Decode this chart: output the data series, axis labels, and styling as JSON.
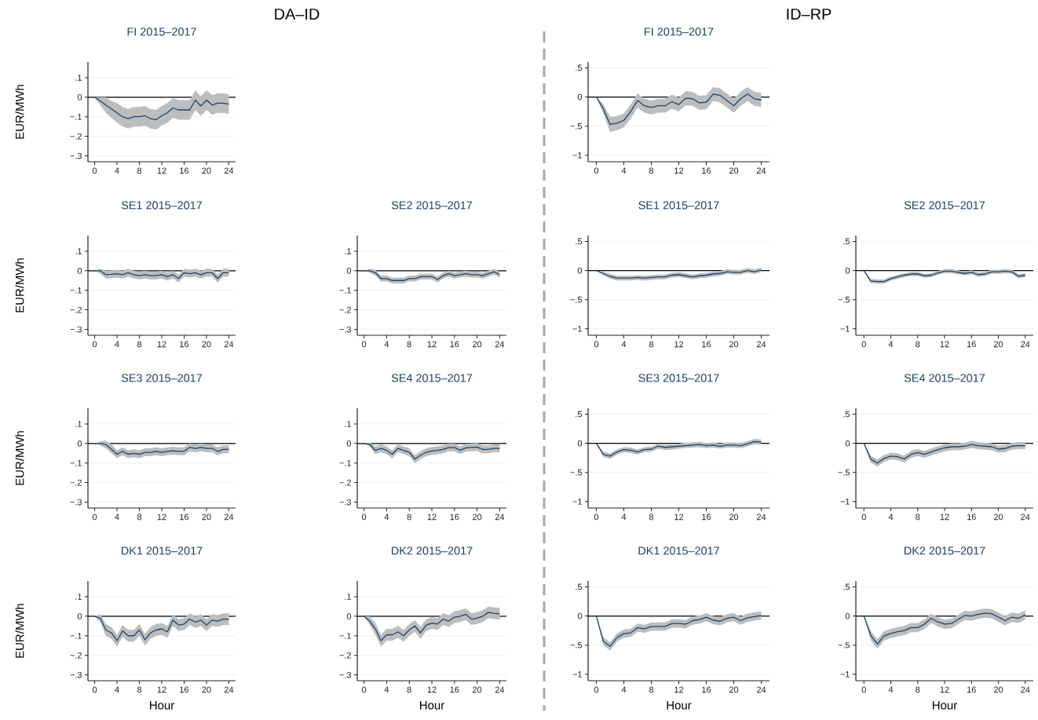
{
  "chart_data": [
    {
      "type": "line",
      "title": "FI 2015–2017",
      "ylabel": "EUR/MWh",
      "annotations": [
        "DA–ID"
      ],
      "x": [
        0,
        1,
        2,
        3,
        4,
        5,
        6,
        7,
        8,
        9,
        10,
        11,
        12,
        13,
        14,
        15,
        16,
        17,
        18,
        19,
        20,
        21,
        22,
        23,
        24
      ],
      "xlim": [
        -1.2,
        25.2
      ],
      "xticks": [
        0,
        4,
        8,
        12,
        16,
        20,
        24
      ],
      "ylim": [
        -0.33,
        0.18
      ],
      "yticks": [
        {
          "value": 0.1,
          "label": ".1"
        },
        0,
        {
          "value": -0.1,
          "label": "−.1"
        },
        {
          "value": -0.2,
          "label": "−.2"
        },
        {
          "value": -0.3,
          "label": "−.3"
        }
      ],
      "grid": "y",
      "ref_lines": [
        {
          "axis": "y",
          "value": 0,
          "color": "#000000"
        }
      ],
      "series": [
        {
          "color": "#1a476f",
          "values": [
            0,
            -0.02,
            -0.04,
            -0.06,
            -0.08,
            -0.1,
            -0.11,
            -0.1,
            -0.1,
            -0.095,
            -0.11,
            -0.115,
            -0.095,
            -0.08,
            -0.055,
            -0.065,
            -0.065,
            -0.065,
            -0.015,
            -0.045,
            -0.015,
            -0.04,
            -0.03,
            -0.03,
            -0.035
          ],
          "lower": [
            0,
            -0.04,
            -0.08,
            -0.105,
            -0.13,
            -0.15,
            -0.16,
            -0.15,
            -0.15,
            -0.145,
            -0.16,
            -0.165,
            -0.145,
            -0.13,
            -0.105,
            -0.115,
            -0.115,
            -0.115,
            -0.065,
            -0.095,
            -0.065,
            -0.09,
            -0.08,
            -0.08,
            -0.085
          ],
          "upper": [
            0,
            0,
            0,
            -0.02,
            -0.03,
            -0.05,
            -0.06,
            -0.05,
            -0.05,
            -0.045,
            -0.06,
            -0.065,
            -0.045,
            -0.03,
            -0.005,
            -0.015,
            -0.015,
            -0.015,
            0.035,
            0.005,
            0.035,
            0.01,
            0.02,
            0.02,
            0.015
          ]
        }
      ]
    },
    {
      "type": "line",
      "title": "FI 2015–2017",
      "annotations": [
        "ID–RP"
      ],
      "x": [
        0,
        1,
        2,
        3,
        4,
        5,
        6,
        7,
        8,
        9,
        10,
        11,
        12,
        13,
        14,
        15,
        16,
        17,
        18,
        19,
        20,
        21,
        22,
        23,
        24
      ],
      "xlim": [
        -1.2,
        25.2
      ],
      "xticks": [
        0,
        4,
        8,
        12,
        16,
        20,
        24
      ],
      "ylim": [
        -1.11,
        0.6
      ],
      "yticks": [
        {
          "value": 0.5,
          "label": ".5"
        },
        0,
        {
          "value": -0.5,
          "label": "−.5"
        },
        {
          "value": -1,
          "label": "−1"
        }
      ],
      "grid": "y",
      "ref_lines": [
        {
          "axis": "y",
          "value": 0,
          "color": "#000000"
        }
      ],
      "series": [
        {
          "color": "#1a476f",
          "values": [
            0,
            -0.2,
            -0.47,
            -0.45,
            -0.4,
            -0.25,
            -0.06,
            -0.15,
            -0.18,
            -0.15,
            -0.15,
            -0.08,
            -0.13,
            -0.02,
            -0.03,
            -0.1,
            -0.09,
            0.05,
            0.03,
            -0.06,
            -0.15,
            -0.03,
            0.05,
            -0.03,
            -0.05
          ],
          "lower": [
            0,
            -0.28,
            -0.6,
            -0.57,
            -0.52,
            -0.37,
            -0.18,
            -0.27,
            -0.3,
            -0.27,
            -0.27,
            -0.2,
            -0.25,
            -0.14,
            -0.15,
            -0.22,
            -0.21,
            -0.07,
            -0.09,
            -0.18,
            -0.27,
            -0.15,
            -0.07,
            -0.15,
            -0.17
          ],
          "upper": [
            0,
            -0.12,
            -0.34,
            -0.33,
            -0.28,
            -0.13,
            0.06,
            -0.03,
            -0.06,
            -0.03,
            -0.03,
            0.04,
            -0.01,
            0.1,
            0.09,
            0.02,
            0.03,
            0.17,
            0.15,
            0.06,
            -0.03,
            0.09,
            0.17,
            0.09,
            0.07
          ]
        }
      ]
    },
    {
      "type": "line",
      "title": "SE1 2015–2017",
      "ylabel": "EUR/MWh",
      "x": [
        0,
        1,
        2,
        3,
        4,
        5,
        6,
        7,
        8,
        9,
        10,
        11,
        12,
        13,
        14,
        15,
        16,
        17,
        18,
        19,
        20,
        21,
        22,
        23,
        24
      ],
      "xlim": [
        -1.2,
        25.2
      ],
      "xticks": [
        0,
        4,
        8,
        12,
        16,
        20,
        24
      ],
      "ylim": [
        -0.33,
        0.18
      ],
      "yticks": [
        {
          "value": 0.1,
          "label": ".1"
        },
        0,
        {
          "value": -0.1,
          "label": "−.1"
        },
        {
          "value": -0.2,
          "label": "−.2"
        },
        {
          "value": -0.3,
          "label": "−.3"
        }
      ],
      "grid": "y",
      "ref_lines": [
        {
          "axis": "y",
          "value": 0,
          "color": "#000000"
        }
      ],
      "series": [
        {
          "color": "#1a476f",
          "values": [
            0,
            0,
            -0.02,
            -0.018,
            -0.015,
            -0.02,
            -0.01,
            -0.02,
            -0.025,
            -0.02,
            -0.025,
            -0.025,
            -0.02,
            -0.03,
            -0.02,
            -0.04,
            -0.01,
            -0.015,
            -0.01,
            -0.02,
            -0.01,
            -0.01,
            -0.04,
            -0.01,
            -0.01
          ],
          "lower": [
            0,
            -0.015,
            -0.04,
            -0.038,
            -0.035,
            -0.04,
            -0.03,
            -0.04,
            -0.045,
            -0.04,
            -0.045,
            -0.045,
            -0.04,
            -0.05,
            -0.04,
            -0.06,
            -0.03,
            -0.035,
            -0.03,
            -0.04,
            -0.03,
            -0.03,
            -0.06,
            -0.03,
            -0.03
          ],
          "upper": [
            0,
            0.01,
            0,
            0.002,
            0.005,
            0,
            0.01,
            0,
            -0.005,
            0,
            -0.005,
            -0.005,
            0,
            -0.01,
            0,
            -0.02,
            0.01,
            0.005,
            0.01,
            0,
            0.01,
            0.01,
            -0.02,
            0.01,
            0.01
          ]
        }
      ]
    },
    {
      "type": "line",
      "title": "SE2 2015–2017",
      "x": [
        0,
        1,
        2,
        3,
        4,
        5,
        6,
        7,
        8,
        9,
        10,
        11,
        12,
        13,
        14,
        15,
        16,
        17,
        18,
        19,
        20,
        21,
        22,
        23,
        24
      ],
      "xlim": [
        -1.2,
        25.2
      ],
      "xticks": [
        0,
        4,
        8,
        12,
        16,
        20,
        24
      ],
      "ylim": [
        -0.33,
        0.18
      ],
      "yticks": [
        {
          "value": 0.1,
          "label": ".1"
        },
        0,
        {
          "value": -0.1,
          "label": "−.1"
        },
        {
          "value": -0.2,
          "label": "−.2"
        },
        {
          "value": -0.3,
          "label": "−.3"
        }
      ],
      "grid": "y",
      "ref_lines": [
        {
          "axis": "y",
          "value": 0,
          "color": "#000000"
        }
      ],
      "series": [
        {
          "color": "#1a476f",
          "values": [
            0,
            0,
            -0.01,
            -0.04,
            -0.04,
            -0.05,
            -0.05,
            -0.05,
            -0.04,
            -0.04,
            -0.03,
            -0.03,
            -0.03,
            -0.045,
            -0.025,
            -0.015,
            -0.025,
            -0.02,
            -0.015,
            -0.02,
            -0.02,
            -0.025,
            -0.015,
            -0.005,
            -0.02
          ],
          "lower": [
            0,
            -0.01,
            -0.025,
            -0.055,
            -0.055,
            -0.065,
            -0.065,
            -0.065,
            -0.055,
            -0.055,
            -0.045,
            -0.045,
            -0.045,
            -0.06,
            -0.04,
            -0.03,
            -0.04,
            -0.035,
            -0.03,
            -0.035,
            -0.035,
            -0.04,
            -0.03,
            -0.02,
            -0.035
          ],
          "upper": [
            0,
            0.01,
            0.005,
            -0.025,
            -0.025,
            -0.035,
            -0.035,
            -0.035,
            -0.025,
            -0.025,
            -0.015,
            -0.015,
            -0.015,
            -0.03,
            -0.01,
            0,
            -0.01,
            -0.005,
            0,
            -0.005,
            -0.005,
            -0.01,
            0,
            0.01,
            -0.005
          ]
        }
      ]
    },
    {
      "type": "line",
      "title": "SE1 2015–2017",
      "x": [
        0,
        1,
        2,
        3,
        4,
        5,
        6,
        7,
        8,
        9,
        10,
        11,
        12,
        13,
        14,
        15,
        16,
        17,
        18,
        19,
        20,
        21,
        22,
        23,
        24
      ],
      "xlim": [
        -1.2,
        25.2
      ],
      "xticks": [
        0,
        4,
        8,
        12,
        16,
        20,
        24
      ],
      "ylim": [
        -1.11,
        0.6
      ],
      "yticks": [
        {
          "value": 0.5,
          "label": ".5"
        },
        0,
        {
          "value": -0.5,
          "label": "−.5"
        },
        {
          "value": -1,
          "label": "−1"
        }
      ],
      "grid": "y",
      "ref_lines": [
        {
          "axis": "y",
          "value": 0,
          "color": "#000000"
        }
      ],
      "series": [
        {
          "color": "#1a476f",
          "values": [
            0,
            -0.05,
            -0.1,
            -0.13,
            -0.13,
            -0.13,
            -0.12,
            -0.13,
            -0.12,
            -0.11,
            -0.11,
            -0.08,
            -0.07,
            -0.09,
            -0.11,
            -0.09,
            -0.08,
            -0.06,
            -0.05,
            -0.02,
            -0.03,
            -0.03,
            0,
            -0.02,
            0.01
          ],
          "lower": [
            0,
            -0.08,
            -0.14,
            -0.17,
            -0.17,
            -0.17,
            -0.16,
            -0.17,
            -0.16,
            -0.15,
            -0.15,
            -0.12,
            -0.11,
            -0.13,
            -0.15,
            -0.13,
            -0.12,
            -0.1,
            -0.09,
            -0.06,
            -0.07,
            -0.07,
            -0.04,
            -0.06,
            -0.03
          ],
          "upper": [
            0,
            -0.02,
            -0.06,
            -0.09,
            -0.09,
            -0.09,
            -0.08,
            -0.09,
            -0.08,
            -0.07,
            -0.07,
            -0.04,
            -0.03,
            -0.05,
            -0.07,
            -0.05,
            -0.04,
            -0.02,
            -0.01,
            0.02,
            0.01,
            0.01,
            0.04,
            0.02,
            0.05
          ]
        }
      ]
    },
    {
      "type": "line",
      "title": "SE2 2015–2017",
      "x": [
        0,
        1,
        2,
        3,
        4,
        5,
        6,
        7,
        8,
        9,
        10,
        11,
        12,
        13,
        14,
        15,
        16,
        17,
        18,
        19,
        20,
        21,
        22,
        23,
        24
      ],
      "xlim": [
        -1.2,
        25.2
      ],
      "xticks": [
        0,
        4,
        8,
        12,
        16,
        20,
        24
      ],
      "ylim": [
        -1.11,
        0.6
      ],
      "yticks": [
        {
          "value": 0.5,
          "label": ".5"
        },
        0,
        {
          "value": -0.5,
          "label": "−.5"
        },
        {
          "value": -1,
          "label": "−1"
        }
      ],
      "grid": "y",
      "ref_lines": [
        {
          "axis": "y",
          "value": 0,
          "color": "#000000"
        }
      ],
      "series": [
        {
          "color": "#1a476f",
          "values": [
            0,
            -0.18,
            -0.19,
            -0.19,
            -0.14,
            -0.11,
            -0.08,
            -0.06,
            -0.06,
            -0.09,
            -0.08,
            -0.04,
            -0.01,
            -0.01,
            -0.03,
            -0.05,
            -0.03,
            -0.07,
            -0.06,
            -0.02,
            -0.02,
            -0.01,
            -0.02,
            -0.1,
            -0.08
          ],
          "lower": [
            0,
            -0.215,
            -0.225,
            -0.225,
            -0.175,
            -0.145,
            -0.115,
            -0.095,
            -0.095,
            -0.125,
            -0.115,
            -0.075,
            -0.045,
            -0.045,
            -0.065,
            -0.085,
            -0.065,
            -0.105,
            -0.095,
            -0.055,
            -0.055,
            -0.045,
            -0.055,
            -0.135,
            -0.115
          ],
          "upper": [
            0,
            -0.145,
            -0.155,
            -0.155,
            -0.105,
            -0.075,
            -0.045,
            -0.025,
            -0.025,
            -0.055,
            -0.045,
            -0.005,
            0.025,
            0.025,
            0.005,
            -0.015,
            0.005,
            -0.035,
            -0.025,
            0.015,
            0.015,
            0.025,
            0.015,
            -0.065,
            -0.045
          ]
        }
      ]
    },
    {
      "type": "line",
      "title": "SE3 2015–2017",
      "ylabel": "EUR/MWh",
      "x": [
        0,
        1,
        2,
        3,
        4,
        5,
        6,
        7,
        8,
        9,
        10,
        11,
        12,
        13,
        14,
        15,
        16,
        17,
        18,
        19,
        20,
        21,
        22,
        23,
        24
      ],
      "xlim": [
        -1.2,
        25.2
      ],
      "xticks": [
        0,
        4,
        8,
        12,
        16,
        20,
        24
      ],
      "ylim": [
        -0.33,
        0.18
      ],
      "yticks": [
        {
          "value": 0.1,
          "label": ".1"
        },
        0,
        {
          "value": -0.1,
          "label": "−.1"
        },
        {
          "value": -0.2,
          "label": "−.2"
        },
        {
          "value": -0.3,
          "label": "−.3"
        }
      ],
      "grid": "y",
      "ref_lines": [
        {
          "axis": "y",
          "value": 0,
          "color": "#000000"
        }
      ],
      "series": [
        {
          "color": "#1a476f",
          "values": [
            0,
            0,
            -0.005,
            -0.03,
            -0.055,
            -0.04,
            -0.055,
            -0.05,
            -0.055,
            -0.045,
            -0.045,
            -0.04,
            -0.045,
            -0.04,
            -0.037,
            -0.04,
            -0.04,
            -0.02,
            -0.025,
            -0.02,
            -0.025,
            -0.025,
            -0.04,
            -0.03,
            -0.03
          ],
          "lower": [
            0,
            -0.01,
            -0.025,
            -0.05,
            -0.075,
            -0.06,
            -0.075,
            -0.07,
            -0.075,
            -0.065,
            -0.065,
            -0.06,
            -0.065,
            -0.06,
            -0.057,
            -0.06,
            -0.06,
            -0.04,
            -0.045,
            -0.04,
            -0.045,
            -0.045,
            -0.06,
            -0.05,
            -0.05
          ],
          "upper": [
            0,
            0.01,
            0.015,
            -0.005,
            -0.035,
            -0.02,
            -0.035,
            -0.03,
            -0.035,
            -0.025,
            -0.025,
            -0.02,
            -0.025,
            -0.02,
            -0.017,
            -0.02,
            -0.02,
            0,
            -0.005,
            0,
            -0.005,
            -0.005,
            -0.02,
            -0.01,
            -0.01
          ]
        }
      ]
    },
    {
      "type": "line",
      "title": "SE4 2015–2017",
      "x": [
        0,
        1,
        2,
        3,
        4,
        5,
        6,
        7,
        8,
        9,
        10,
        11,
        12,
        13,
        14,
        15,
        16,
        17,
        18,
        19,
        20,
        21,
        22,
        23,
        24
      ],
      "xlim": [
        -1.2,
        25.2
      ],
      "xticks": [
        0,
        4,
        8,
        12,
        16,
        20,
        24
      ],
      "ylim": [
        -0.33,
        0.18
      ],
      "yticks": [
        {
          "value": 0.1,
          "label": ".1"
        },
        0,
        {
          "value": -0.1,
          "label": "−.1"
        },
        {
          "value": -0.2,
          "label": "−.2"
        },
        {
          "value": -0.3,
          "label": "−.3"
        }
      ],
      "grid": "y",
      "ref_lines": [
        {
          "axis": "y",
          "value": 0,
          "color": "#000000"
        }
      ],
      "series": [
        {
          "color": "#1a476f",
          "values": [
            0,
            -0.005,
            -0.035,
            -0.025,
            -0.035,
            -0.055,
            -0.025,
            -0.035,
            -0.045,
            -0.08,
            -0.06,
            -0.045,
            -0.038,
            -0.035,
            -0.03,
            -0.02,
            -0.02,
            -0.035,
            -0.022,
            -0.02,
            -0.018,
            -0.03,
            -0.03,
            -0.025,
            -0.025
          ],
          "lower": [
            0,
            -0.015,
            -0.055,
            -0.045,
            -0.055,
            -0.075,
            -0.045,
            -0.055,
            -0.065,
            -0.1,
            -0.08,
            -0.065,
            -0.058,
            -0.055,
            -0.05,
            -0.04,
            -0.04,
            -0.055,
            -0.042,
            -0.04,
            -0.038,
            -0.05,
            -0.05,
            -0.045,
            -0.045
          ],
          "upper": [
            0,
            0.005,
            -0.015,
            -0.005,
            -0.015,
            -0.035,
            -0.005,
            -0.015,
            -0.025,
            -0.06,
            -0.04,
            -0.025,
            -0.018,
            -0.015,
            -0.01,
            0,
            0,
            -0.015,
            -0.002,
            0,
            0.002,
            -0.01,
            -0.01,
            -0.005,
            -0.005
          ]
        }
      ]
    },
    {
      "type": "line",
      "title": "SE3 2015–2017",
      "x": [
        0,
        1,
        2,
        3,
        4,
        5,
        6,
        7,
        8,
        9,
        10,
        11,
        12,
        13,
        14,
        15,
        16,
        17,
        18,
        19,
        20,
        21,
        22,
        23,
        24
      ],
      "xlim": [
        -1.2,
        25.2
      ],
      "xticks": [
        0,
        4,
        8,
        12,
        16,
        20,
        24
      ],
      "ylim": [
        -1.11,
        0.6
      ],
      "yticks": [
        {
          "value": 0.5,
          "label": ".5"
        },
        0,
        {
          "value": -0.5,
          "label": "−.5"
        },
        {
          "value": -1,
          "label": "−1"
        }
      ],
      "grid": "y",
      "ref_lines": [
        {
          "axis": "y",
          "value": 0,
          "color": "#000000"
        }
      ],
      "series": [
        {
          "color": "#1a476f",
          "values": [
            0,
            -0.19,
            -0.22,
            -0.15,
            -0.11,
            -0.12,
            -0.15,
            -0.11,
            -0.1,
            -0.05,
            -0.07,
            -0.06,
            -0.05,
            -0.04,
            -0.03,
            -0.02,
            -0.04,
            -0.03,
            -0.05,
            -0.03,
            -0.03,
            -0.04,
            -0.01,
            0.03,
            0.02
          ],
          "lower": [
            0,
            -0.235,
            -0.265,
            -0.195,
            -0.155,
            -0.165,
            -0.195,
            -0.155,
            -0.145,
            -0.095,
            -0.115,
            -0.11,
            -0.095,
            -0.08,
            -0.075,
            -0.065,
            -0.085,
            -0.075,
            -0.095,
            -0.075,
            -0.075,
            -0.085,
            -0.055,
            -0.015,
            -0.025
          ],
          "upper": [
            0,
            -0.145,
            -0.175,
            -0.105,
            -0.065,
            -0.075,
            -0.105,
            -0.065,
            -0.055,
            -0.005,
            -0.025,
            -0.015,
            -0.005,
            0.01,
            0.015,
            0.025,
            0.005,
            0.015,
            -0.005,
            0.015,
            0.015,
            0.005,
            0.035,
            0.075,
            0.065
          ]
        }
      ]
    },
    {
      "type": "line",
      "title": "SE4 2015–2017",
      "x": [
        0,
        1,
        2,
        3,
        4,
        5,
        6,
        7,
        8,
        9,
        10,
        11,
        12,
        13,
        14,
        15,
        16,
        17,
        18,
        19,
        20,
        21,
        22,
        23,
        24
      ],
      "xlim": [
        -1.2,
        25.2
      ],
      "xticks": [
        0,
        4,
        8,
        12,
        16,
        20,
        24
      ],
      "ylim": [
        -1.11,
        0.6
      ],
      "yticks": [
        {
          "value": 0.5,
          "label": ".5"
        },
        0,
        {
          "value": -0.5,
          "label": "−.5"
        },
        {
          "value": -1,
          "label": "−1"
        }
      ],
      "grid": "y",
      "ref_lines": [
        {
          "axis": "y",
          "value": 0,
          "color": "#000000"
        }
      ],
      "series": [
        {
          "color": "#1a476f",
          "values": [
            0,
            -0.27,
            -0.34,
            -0.26,
            -0.22,
            -0.23,
            -0.27,
            -0.19,
            -0.16,
            -0.19,
            -0.15,
            -0.11,
            -0.08,
            -0.06,
            -0.06,
            -0.05,
            -0.02,
            -0.04,
            -0.05,
            -0.06,
            -0.1,
            -0.09,
            -0.05,
            -0.04,
            -0.04
          ],
          "lower": [
            0,
            -0.33,
            -0.4,
            -0.32,
            -0.28,
            -0.29,
            -0.33,
            -0.25,
            -0.22,
            -0.25,
            -0.21,
            -0.17,
            -0.14,
            -0.12,
            -0.12,
            -0.11,
            -0.08,
            -0.1,
            -0.11,
            -0.12,
            -0.16,
            -0.15,
            -0.11,
            -0.1,
            -0.1
          ],
          "upper": [
            0,
            -0.21,
            -0.28,
            -0.2,
            -0.16,
            -0.17,
            -0.21,
            -0.13,
            -0.1,
            -0.13,
            -0.09,
            -0.05,
            -0.02,
            0,
            0,
            0.01,
            0.04,
            0.02,
            0.01,
            0,
            -0.04,
            -0.03,
            0.01,
            0.02,
            0.02
          ]
        }
      ]
    },
    {
      "type": "line",
      "title": "DK1 2015–2017",
      "ylabel": "EUR/MWh",
      "xlabel": "Hour",
      "x": [
        0,
        1,
        2,
        3,
        4,
        5,
        6,
        7,
        8,
        9,
        10,
        11,
        12,
        13,
        14,
        15,
        16,
        17,
        18,
        19,
        20,
        21,
        22,
        23,
        24
      ],
      "xlim": [
        -1.2,
        25.2
      ],
      "xticks": [
        0,
        4,
        8,
        12,
        16,
        20,
        24
      ],
      "ylim": [
        -0.33,
        0.18
      ],
      "yticks": [
        {
          "value": 0.1,
          "label": ".1"
        },
        0,
        {
          "value": -0.1,
          "label": "−.1"
        },
        {
          "value": -0.2,
          "label": "−.2"
        },
        {
          "value": -0.3,
          "label": "−.3"
        }
      ],
      "grid": "y",
      "ref_lines": [
        {
          "axis": "y",
          "value": 0,
          "color": "#000000"
        }
      ],
      "series": [
        {
          "color": "#1a476f",
          "values": [
            0,
            -0.01,
            -0.07,
            -0.085,
            -0.125,
            -0.075,
            -0.1,
            -0.1,
            -0.07,
            -0.12,
            -0.085,
            -0.07,
            -0.065,
            -0.08,
            -0.02,
            -0.045,
            -0.04,
            -0.015,
            -0.03,
            -0.02,
            -0.045,
            -0.02,
            -0.025,
            -0.015,
            -0.015
          ],
          "lower": [
            0,
            -0.03,
            -0.1,
            -0.115,
            -0.155,
            -0.105,
            -0.13,
            -0.13,
            -0.1,
            -0.15,
            -0.115,
            -0.1,
            -0.095,
            -0.11,
            -0.05,
            -0.075,
            -0.07,
            -0.045,
            -0.06,
            -0.05,
            -0.075,
            -0.05,
            -0.055,
            -0.045,
            -0.045
          ],
          "upper": [
            0,
            0.01,
            -0.04,
            -0.055,
            -0.095,
            -0.045,
            -0.07,
            -0.07,
            -0.04,
            -0.09,
            -0.055,
            -0.04,
            -0.035,
            -0.05,
            0.01,
            -0.015,
            -0.01,
            0.015,
            0,
            0.01,
            -0.015,
            0.01,
            0.005,
            0.015,
            0.015
          ]
        }
      ]
    },
    {
      "type": "line",
      "title": "DK2 2015–2017",
      "xlabel": "Hour",
      "x": [
        0,
        1,
        2,
        3,
        4,
        5,
        6,
        7,
        8,
        9,
        10,
        11,
        12,
        13,
        14,
        15,
        16,
        17,
        18,
        19,
        20,
        21,
        22,
        23,
        24
      ],
      "xlim": [
        -1.2,
        25.2
      ],
      "xticks": [
        0,
        4,
        8,
        12,
        16,
        20,
        24
      ],
      "ylim": [
        -0.33,
        0.18
      ],
      "yticks": [
        {
          "value": 0.1,
          "label": ".1"
        },
        0,
        {
          "value": -0.1,
          "label": "−.1"
        },
        {
          "value": -0.2,
          "label": "−.2"
        },
        {
          "value": -0.3,
          "label": "−.3"
        }
      ],
      "grid": "y",
      "ref_lines": [
        {
          "axis": "y",
          "value": 0,
          "color": "#000000"
        }
      ],
      "series": [
        {
          "color": "#1a476f",
          "values": [
            0,
            -0.025,
            -0.065,
            -0.125,
            -0.095,
            -0.095,
            -0.08,
            -0.1,
            -0.07,
            -0.05,
            -0.085,
            -0.045,
            -0.035,
            -0.04,
            -0.015,
            -0.025,
            -0.005,
            0,
            0.01,
            -0.015,
            -0.01,
            0,
            0.02,
            0.015,
            0.012
          ],
          "lower": [
            0,
            -0.045,
            -0.095,
            -0.155,
            -0.125,
            -0.125,
            -0.11,
            -0.13,
            -0.1,
            -0.08,
            -0.115,
            -0.075,
            -0.065,
            -0.07,
            -0.045,
            -0.055,
            -0.035,
            -0.03,
            -0.02,
            -0.045,
            -0.04,
            -0.03,
            -0.01,
            -0.015,
            -0.018
          ],
          "upper": [
            0,
            0,
            -0.035,
            -0.095,
            -0.065,
            -0.065,
            -0.05,
            -0.07,
            -0.04,
            -0.02,
            -0.055,
            -0.015,
            -0.005,
            -0.01,
            0.015,
            0.005,
            0.025,
            0.03,
            0.04,
            0.015,
            0.02,
            0.03,
            0.05,
            0.045,
            0.042
          ]
        }
      ]
    },
    {
      "type": "line",
      "title": "DK1 2015–2017",
      "xlabel": "Hour",
      "x": [
        0,
        1,
        2,
        3,
        4,
        5,
        6,
        7,
        8,
        9,
        10,
        11,
        12,
        13,
        14,
        15,
        16,
        17,
        18,
        19,
        20,
        21,
        22,
        23,
        24
      ],
      "xlim": [
        -1.2,
        25.2
      ],
      "xticks": [
        0,
        4,
        8,
        12,
        16,
        20,
        24
      ],
      "ylim": [
        -1.11,
        0.6
      ],
      "yticks": [
        {
          "value": 0.5,
          "label": ".5"
        },
        0,
        {
          "value": -0.5,
          "label": "−.5"
        },
        {
          "value": -1,
          "label": "−1"
        }
      ],
      "grid": "y",
      "ref_lines": [
        {
          "axis": "y",
          "value": 0,
          "color": "#000000"
        }
      ],
      "series": [
        {
          "color": "#1a476f",
          "values": [
            0,
            -0.43,
            -0.52,
            -0.37,
            -0.3,
            -0.29,
            -0.2,
            -0.22,
            -0.18,
            -0.18,
            -0.18,
            -0.13,
            -0.13,
            -0.14,
            -0.08,
            -0.06,
            -0.02,
            -0.07,
            -0.09,
            -0.04,
            -0.02,
            -0.08,
            -0.03,
            -0.01,
            0.01
          ],
          "lower": [
            0,
            -0.5,
            -0.59,
            -0.44,
            -0.37,
            -0.36,
            -0.27,
            -0.29,
            -0.25,
            -0.25,
            -0.25,
            -0.2,
            -0.2,
            -0.21,
            -0.15,
            -0.13,
            -0.09,
            -0.14,
            -0.16,
            -0.11,
            -0.09,
            -0.15,
            -0.1,
            -0.08,
            -0.06
          ],
          "upper": [
            0,
            -0.36,
            -0.45,
            -0.3,
            -0.23,
            -0.22,
            -0.13,
            -0.15,
            -0.11,
            -0.11,
            -0.11,
            -0.06,
            -0.06,
            -0.07,
            -0.01,
            0.01,
            0.05,
            0,
            -0.02,
            0.03,
            0.05,
            -0.01,
            0.04,
            0.06,
            0.08
          ]
        }
      ]
    },
    {
      "type": "line",
      "title": "DK2 2015–2017",
      "xlabel": "Hour",
      "x": [
        0,
        1,
        2,
        3,
        4,
        5,
        6,
        7,
        8,
        9,
        10,
        11,
        12,
        13,
        14,
        15,
        16,
        17,
        18,
        19,
        20,
        21,
        22,
        23,
        24
      ],
      "xlim": [
        -1.2,
        25.2
      ],
      "xticks": [
        0,
        4,
        8,
        12,
        16,
        20,
        24
      ],
      "ylim": [
        -1.11,
        0.6
      ],
      "yticks": [
        {
          "value": 0.5,
          "label": ".5"
        },
        0,
        {
          "value": -0.5,
          "label": "−.5"
        },
        {
          "value": -1,
          "label": "−1"
        }
      ],
      "grid": "y",
      "ref_lines": [
        {
          "axis": "y",
          "value": 0,
          "color": "#000000"
        }
      ],
      "series": [
        {
          "color": "#1a476f",
          "values": [
            0,
            -0.33,
            -0.48,
            -0.34,
            -0.3,
            -0.27,
            -0.25,
            -0.2,
            -0.2,
            -0.14,
            -0.04,
            -0.1,
            -0.14,
            -0.13,
            -0.06,
            0.01,
            0,
            0.03,
            0.05,
            0.04,
            -0.02,
            -0.08,
            -0.02,
            -0.04,
            0.02
          ],
          "lower": [
            0,
            -0.41,
            -0.56,
            -0.42,
            -0.38,
            -0.35,
            -0.33,
            -0.28,
            -0.28,
            -0.22,
            -0.12,
            -0.18,
            -0.22,
            -0.21,
            -0.14,
            -0.07,
            -0.08,
            -0.05,
            -0.03,
            -0.04,
            -0.1,
            -0.16,
            -0.1,
            -0.12,
            -0.06
          ],
          "upper": [
            0,
            -0.25,
            -0.4,
            -0.26,
            -0.22,
            -0.19,
            -0.17,
            -0.12,
            -0.12,
            -0.06,
            0.04,
            -0.02,
            -0.06,
            -0.05,
            0.02,
            0.09,
            0.08,
            0.11,
            0.13,
            0.12,
            0.06,
            0,
            0.06,
            0.04,
            0.1
          ]
        }
      ]
    }
  ]
}
